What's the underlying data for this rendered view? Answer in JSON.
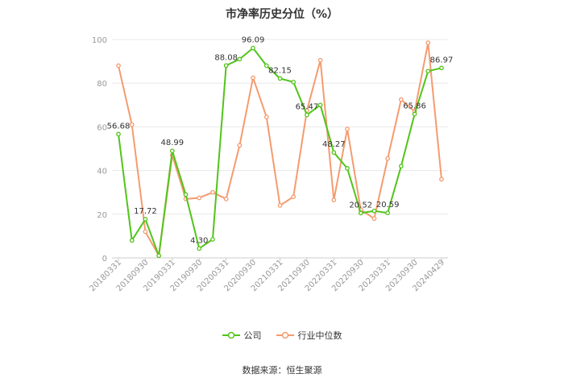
{
  "title": "市净率历史分位（%）",
  "source": "数据来源：恒生聚源",
  "legend": [
    {
      "label": "公司",
      "color": "#52c41a"
    },
    {
      "label": "行业中位数",
      "color": "#f59b6f"
    }
  ],
  "chart_data": {
    "type": "line",
    "ylim": [
      0,
      100
    ],
    "yticks": [
      0,
      20,
      40,
      60,
      80,
      100
    ],
    "x_tick_labels": [
      "20180331",
      "20180930",
      "20190331",
      "20190930",
      "20200331",
      "20200930",
      "20210331",
      "20210930",
      "20220331",
      "20220930",
      "20230331",
      "20230930",
      "20240429"
    ],
    "grid": true,
    "legend_position": "bottom",
    "series": [
      {
        "name": "公司",
        "color": "#52c41a",
        "values": [
          56.68,
          8,
          17.72,
          1,
          48.99,
          29,
          4.3,
          8.5,
          88.08,
          91,
          96.09,
          88,
          82.15,
          80.5,
          65.47,
          70,
          48.27,
          41,
          20.52,
          21.5,
          20.59,
          42,
          65.86,
          85.5,
          86.97
        ],
        "labels": {
          "0": "56.68",
          "2": "17.72",
          "4": "48.99",
          "6": "4.30",
          "8": "88.08",
          "10": "96.09",
          "12": "82.15",
          "14": "65.47",
          "16": "48.27",
          "18": "20.52",
          "20": "20.59",
          "22": "65.86",
          "24": "86.97"
        }
      },
      {
        "name": "行业中位数",
        "color": "#f59b6f",
        "values": [
          88,
          61,
          12,
          1,
          47,
          27,
          27.5,
          30,
          27,
          51.5,
          82.5,
          64.5,
          24,
          28,
          67.5,
          90.5,
          26.5,
          59,
          22,
          18,
          45.5,
          72.5,
          67,
          98.5,
          36
        ]
      }
    ]
  }
}
